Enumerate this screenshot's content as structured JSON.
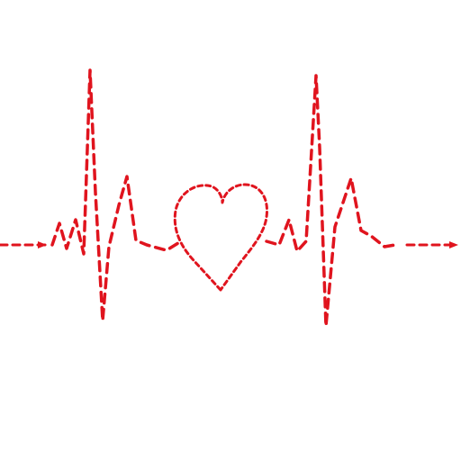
{
  "illustration": {
    "subject": "heartbeat-line-with-heart",
    "stroke_color": "#e0141e",
    "line_style": "dashed",
    "elements": [
      "left-arrow",
      "left-spike",
      "heart",
      "right-spike",
      "right-arrow"
    ]
  }
}
